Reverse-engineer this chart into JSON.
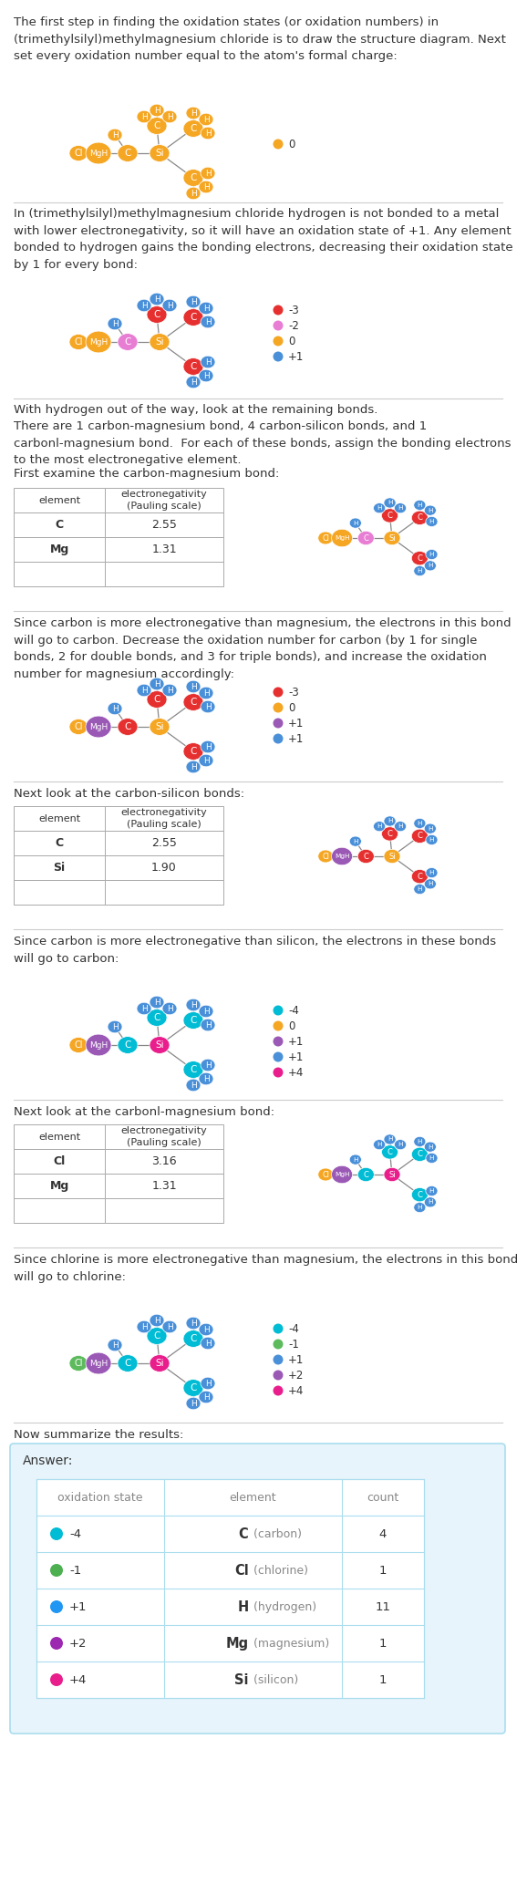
{
  "title_text_1": "The first step in finding the oxidation states (or oxidation numbers) in\n(trimethylsilyl)methylmagnesium chloride is to draw the structure diagram. Next\nset every oxidation number equal to the atom's formal charge:",
  "text_2": "In (trimethylsilyl)methylmagnesium chloride hydrogen is not bonded to a metal\nwith lower electronegativity, so it will have an oxidation state of +1. Any element\nbonded to hydrogen gains the bonding electrons, decreasing their oxidation state\nby 1 for every bond:",
  "text_3a": "With hydrogen out of the way, look at the remaining bonds.",
  "text_3b": "There are 1 carbon-magnesium bond, 4 carbon-silicon bonds, and 1\ncarbonl-magnesium bond.  For each of these bonds, assign the bonding electrons\nto the most electronegative element.",
  "text_3c": "First examine the carbon-magnesium bond:",
  "text_4": "Since carbon is more electronegative than magnesium, the electrons in this bond\nwill go to carbon. Decrease the oxidation number for carbon (by 1 for single\nbonds, 2 for double bonds, and 3 for triple bonds), and increase the oxidation\nnumber for magnesium accordingly:",
  "text_5": "Next look at the carbon-silicon bonds:",
  "text_6": "Since carbon is more electronegative than silicon, the electrons in these bonds\nwill go to carbon:",
  "text_7": "Next look at the carbonl-magnesium bond:",
  "text_8": "Since chlorine is more electronegative than magnesium, the electrons in this bond\nwill go to chlorine:",
  "text_9": "Now summarize the results:",
  "answer_label": "Answer:",
  "table_headers": [
    "oxidation state",
    "element",
    "count"
  ],
  "table_rows": [
    [
      "-4",
      "C",
      "(carbon)",
      "4",
      "#00bcd4"
    ],
    [
      "-1",
      "Cl",
      "(chlorine)",
      "1",
      "#4caf50"
    ],
    [
      "+1",
      "H",
      "(hydrogen)",
      "11",
      "#2196f3"
    ],
    [
      "+2",
      "Mg",
      "(magnesium)",
      "1",
      "#9c27b0"
    ],
    [
      "+4",
      "Si",
      "(silicon)",
      "1",
      "#e91e8c"
    ]
  ],
  "node_color_orange": "#f5a623",
  "node_color_blue": "#4a90d9",
  "node_color_red": "#e63030",
  "node_color_pink": "#e87dd4",
  "node_color_purple": "#9b59b6",
  "node_color_green": "#5dbb5d",
  "node_color_teal": "#00bcd4",
  "node_color_hotpink": "#e91e8c",
  "bg_color": "#ffffff",
  "divider_color": "#cccccc",
  "text_color": "#333333",
  "table_border_color": "#aaddee",
  "answer_bg": "#e8f4fb"
}
